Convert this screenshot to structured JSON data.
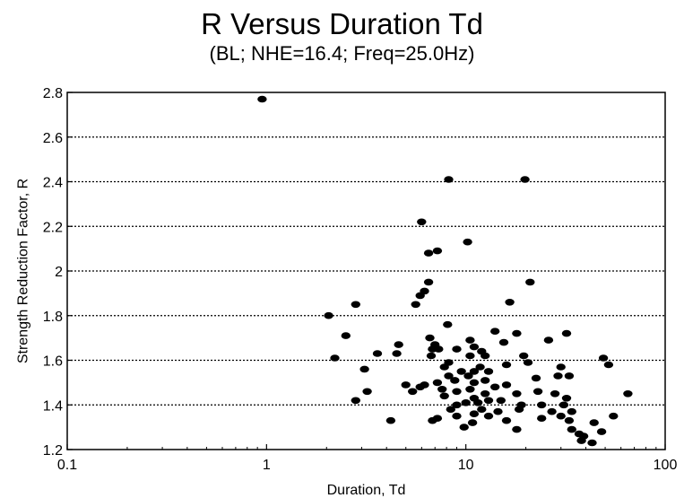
{
  "chart_data": {
    "type": "scatter",
    "title": "R Versus Duration Td",
    "subtitle": "(BL; NHE=16.4; Freq=25.0Hz)",
    "xlabel": "Duration, Td",
    "ylabel": "Strength Reduction Factor, R",
    "xscale": "log",
    "xlim": [
      0.1,
      100
    ],
    "ylim": [
      1.2,
      2.8
    ],
    "xticks": [
      "0.1",
      "1",
      "10",
      "100"
    ],
    "yticks": [
      "1.2",
      "1.4",
      "1.6",
      "1.8",
      "2",
      "2.2",
      "2.4",
      "2.6",
      "2.8"
    ],
    "grid": "horizontal-dotted",
    "marker_color": "#000000",
    "points": [
      [
        0.95,
        2.77
      ],
      [
        8.2,
        2.41
      ],
      [
        19.8,
        2.41
      ],
      [
        6.0,
        2.22
      ],
      [
        10.2,
        2.13
      ],
      [
        7.2,
        2.09
      ],
      [
        6.5,
        2.08
      ],
      [
        21.0,
        1.95
      ],
      [
        6.5,
        1.95
      ],
      [
        6.2,
        1.91
      ],
      [
        5.9,
        1.89
      ],
      [
        5.6,
        1.85
      ],
      [
        2.8,
        1.85
      ],
      [
        16.6,
        1.86
      ],
      [
        2.05,
        1.8
      ],
      [
        8.1,
        1.76
      ],
      [
        2.5,
        1.71
      ],
      [
        18.0,
        1.72
      ],
      [
        32.0,
        1.72
      ],
      [
        14.0,
        1.73
      ],
      [
        6.6,
        1.7
      ],
      [
        10.5,
        1.69
      ],
      [
        15.5,
        1.68
      ],
      [
        26.0,
        1.69
      ],
      [
        4.6,
        1.67
      ],
      [
        7.0,
        1.67
      ],
      [
        6.8,
        1.65
      ],
      [
        7.3,
        1.65
      ],
      [
        9.0,
        1.65
      ],
      [
        11.0,
        1.66
      ],
      [
        12.0,
        1.64
      ],
      [
        3.6,
        1.63
      ],
      [
        4.5,
        1.63
      ],
      [
        6.7,
        1.62
      ],
      [
        10.5,
        1.62
      ],
      [
        12.5,
        1.62
      ],
      [
        19.5,
        1.62
      ],
      [
        2.2,
        1.61
      ],
      [
        49.0,
        1.61
      ],
      [
        20.5,
        1.59
      ],
      [
        8.2,
        1.59
      ],
      [
        7.8,
        1.57
      ],
      [
        11.8,
        1.57
      ],
      [
        16.0,
        1.58
      ],
      [
        30.0,
        1.57
      ],
      [
        52.0,
        1.58
      ],
      [
        3.1,
        1.56
      ],
      [
        9.5,
        1.55
      ],
      [
        11.0,
        1.55
      ],
      [
        13.0,
        1.55
      ],
      [
        10.3,
        1.53
      ],
      [
        8.2,
        1.53
      ],
      [
        22.5,
        1.52
      ],
      [
        29.0,
        1.53
      ],
      [
        33.0,
        1.53
      ],
      [
        12.5,
        1.51
      ],
      [
        7.2,
        1.5
      ],
      [
        8.8,
        1.51
      ],
      [
        11.0,
        1.5
      ],
      [
        5.0,
        1.49
      ],
      [
        6.2,
        1.49
      ],
      [
        5.9,
        1.48
      ],
      [
        7.6,
        1.47
      ],
      [
        14.0,
        1.48
      ],
      [
        16.0,
        1.49
      ],
      [
        5.4,
        1.46
      ],
      [
        9.0,
        1.46
      ],
      [
        10.5,
        1.47
      ],
      [
        12.5,
        1.45
      ],
      [
        18.0,
        1.45
      ],
      [
        23.0,
        1.46
      ],
      [
        28.0,
        1.45
      ],
      [
        3.2,
        1.46
      ],
      [
        7.8,
        1.44
      ],
      [
        11.0,
        1.43
      ],
      [
        13.0,
        1.42
      ],
      [
        15.0,
        1.42
      ],
      [
        32.0,
        1.43
      ],
      [
        65.0,
        1.45
      ],
      [
        2.8,
        1.42
      ],
      [
        9.0,
        1.4
      ],
      [
        10.0,
        1.41
      ],
      [
        11.5,
        1.41
      ],
      [
        19.0,
        1.4
      ],
      [
        24.0,
        1.4
      ],
      [
        31.0,
        1.4
      ],
      [
        8.4,
        1.38
      ],
      [
        12.0,
        1.38
      ],
      [
        14.5,
        1.37
      ],
      [
        18.5,
        1.38
      ],
      [
        27.0,
        1.37
      ],
      [
        34.0,
        1.37
      ],
      [
        9.0,
        1.35
      ],
      [
        11.0,
        1.36
      ],
      [
        13.0,
        1.35
      ],
      [
        7.2,
        1.34
      ],
      [
        16.0,
        1.33
      ],
      [
        24.0,
        1.34
      ],
      [
        30.0,
        1.35
      ],
      [
        55.0,
        1.35
      ],
      [
        4.2,
        1.33
      ],
      [
        6.8,
        1.33
      ],
      [
        10.8,
        1.32
      ],
      [
        33.0,
        1.33
      ],
      [
        44.0,
        1.32
      ],
      [
        9.8,
        1.3
      ],
      [
        18.0,
        1.29
      ],
      [
        34.0,
        1.29
      ],
      [
        48.0,
        1.28
      ],
      [
        37.0,
        1.27
      ],
      [
        39.0,
        1.26
      ],
      [
        38.0,
        1.24
      ],
      [
        43.0,
        1.23
      ]
    ]
  }
}
